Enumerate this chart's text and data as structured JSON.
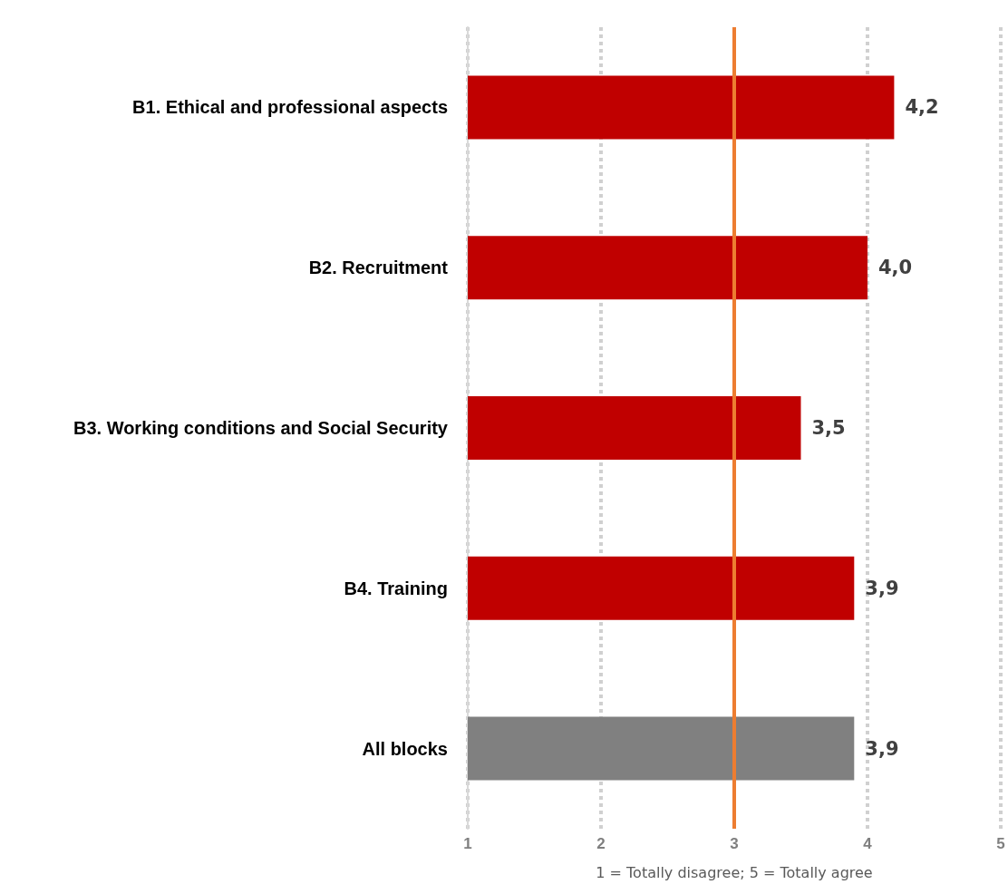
{
  "chart_data": {
    "type": "bar",
    "orientation": "horizontal",
    "categories": [
      "B1. Ethical and professional aspects",
      "B2. Recruitment",
      "B3. Working conditions and Social Security",
      "B4. Training",
      "All blocks"
    ],
    "values": [
      4.2,
      4.0,
      3.5,
      3.9,
      3.9
    ],
    "colors": [
      "#c00000",
      "#c00000",
      "#c00000",
      "#c00000",
      "#808080"
    ],
    "value_labels": [
      "4,2",
      "4,0",
      "3,5",
      "3,9",
      "3,9"
    ],
    "xlim": [
      1,
      5
    ],
    "xticks": [
      1,
      2,
      3,
      4,
      5
    ],
    "xlabel": "1 = Totally disagree; 5 = Totally agree",
    "ref_lines": [
      {
        "axis": "x",
        "value": 3,
        "color": "#ed7d31"
      }
    ],
    "grid": "x"
  }
}
